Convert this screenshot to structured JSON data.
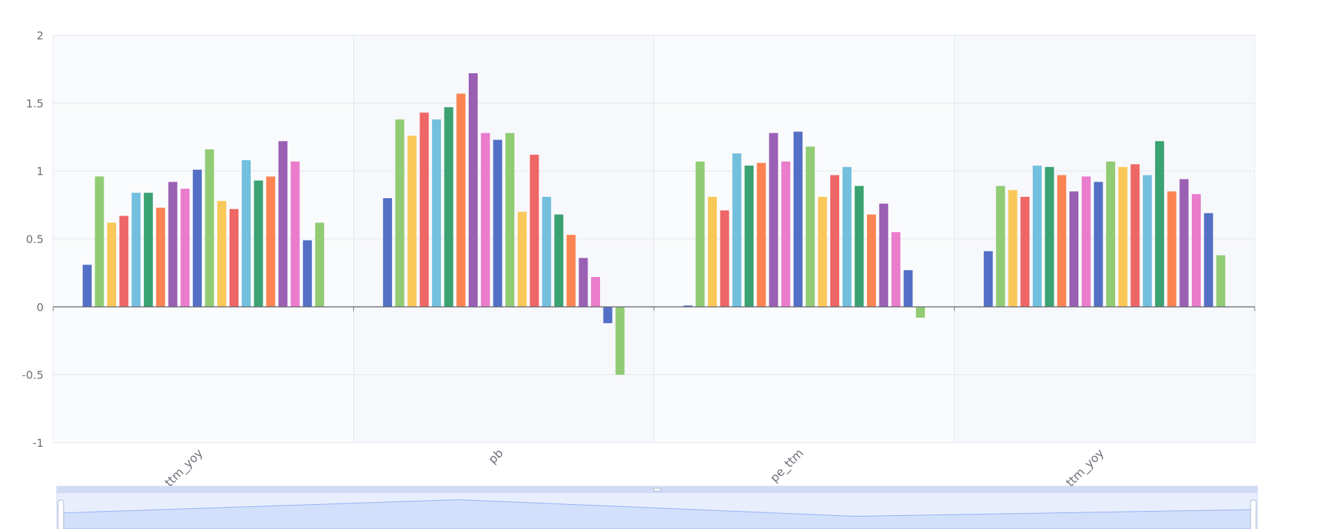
{
  "chart_data": {
    "type": "bar",
    "categories": [
      "net_profit_ttm_yoy",
      "pb",
      "pe_ttm",
      "revenue_ttm_yoy"
    ],
    "ylim": [
      -1,
      2
    ],
    "yticks": [
      2,
      1.5,
      1,
      0.5,
      0,
      -0.5,
      -1
    ],
    "ytick_labels": [
      "2",
      "1.5",
      "1",
      "0.5",
      "0",
      "-0.5",
      "-1"
    ],
    "grid": true,
    "legend": "none",
    "series_colors": [
      "#5470c6",
      "#91cc75",
      "#fac858",
      "#ee6666",
      "#73c0de",
      "#3ba272",
      "#fc8452",
      "#9a60b4",
      "#ea7ccc"
    ],
    "series": [
      {
        "values": [
          0.31,
          0.8,
          0.01,
          0.41
        ]
      },
      {
        "values": [
          0.96,
          1.38,
          1.07,
          0.89
        ]
      },
      {
        "values": [
          0.62,
          1.26,
          0.81,
          0.86
        ]
      },
      {
        "values": [
          0.67,
          1.43,
          0.71,
          0.81
        ]
      },
      {
        "values": [
          0.84,
          1.38,
          1.13,
          1.04
        ]
      },
      {
        "values": [
          0.84,
          1.47,
          1.04,
          1.03
        ]
      },
      {
        "values": [
          0.73,
          1.57,
          1.06,
          0.97
        ]
      },
      {
        "values": [
          0.92,
          1.72,
          1.28,
          0.85
        ]
      },
      {
        "values": [
          0.87,
          1.28,
          1.07,
          0.96
        ]
      },
      {
        "values": [
          1.01,
          1.23,
          1.29,
          0.92
        ]
      },
      {
        "values": [
          1.16,
          1.28,
          1.18,
          1.07
        ]
      },
      {
        "values": [
          0.78,
          0.7,
          0.81,
          1.03
        ]
      },
      {
        "values": [
          0.72,
          1.12,
          0.97,
          1.05
        ]
      },
      {
        "values": [
          1.08,
          0.81,
          1.03,
          0.97
        ]
      },
      {
        "values": [
          0.93,
          0.68,
          0.89,
          1.22
        ]
      },
      {
        "values": [
          0.96,
          0.53,
          0.68,
          0.85
        ]
      },
      {
        "values": [
          1.22,
          0.36,
          0.76,
          0.94
        ]
      },
      {
        "values": [
          1.07,
          0.22,
          0.55,
          0.83
        ]
      },
      {
        "values": [
          0.49,
          -0.12,
          0.27,
          0.69
        ]
      },
      {
        "values": [
          0.62,
          -0.5,
          -0.08,
          0.38
        ]
      }
    ],
    "data_zoom": {
      "start": 0,
      "end": 100,
      "shadow_values": [
        0.8,
        1.6,
        0.6,
        1.0
      ]
    }
  }
}
